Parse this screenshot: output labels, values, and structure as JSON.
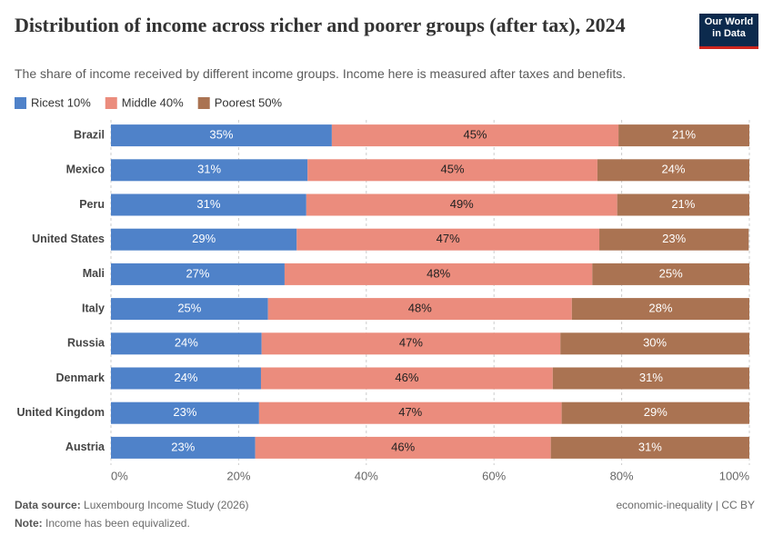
{
  "chart_data": {
    "type": "bar",
    "orientation": "horizontal",
    "stacked": true,
    "title": "Distribution of income across richer and poorer groups (after tax), 2024",
    "subtitle": "The share of income received by different income groups. Income here is measured after taxes and benefits.",
    "logo": [
      "Our World",
      "in Data"
    ],
    "categories": [
      "Brazil",
      "Mexico",
      "Peru",
      "United States",
      "Mali",
      "Italy",
      "Russia",
      "Denmark",
      "United Kingdom",
      "Austria"
    ],
    "series": [
      {
        "name": "Ricest 10%",
        "color": "#4f82c9",
        "values": [
          34.6,
          30.8,
          30.6,
          29.1,
          27.2,
          24.6,
          23.6,
          23.5,
          23.2,
          22.6
        ],
        "value_labels": [
          "35%",
          "31%",
          "31%",
          "29%",
          "27%",
          "25%",
          "24%",
          "24%",
          "23%",
          "23%"
        ]
      },
      {
        "name": "Middle 40%",
        "color": "#eb8c7d",
        "values": [
          44.9,
          45.4,
          48.7,
          47.4,
          48.2,
          47.6,
          46.8,
          45.7,
          47.4,
          46.3
        ],
        "value_labels": [
          "45%",
          "45%",
          "49%",
          "47%",
          "48%",
          "48%",
          "47%",
          "46%",
          "47%",
          "46%"
        ]
      },
      {
        "name": "Poorest 50%",
        "color": "#aa7352",
        "values": [
          20.5,
          23.8,
          20.7,
          23.4,
          24.6,
          27.8,
          29.6,
          30.8,
          29.4,
          31.1
        ],
        "value_labels": [
          "21%",
          "24%",
          "21%",
          "23%",
          "25%",
          "28%",
          "30%",
          "31%",
          "29%",
          "31%"
        ]
      }
    ],
    "xlim": [
      0,
      100
    ],
    "xticks": [
      {
        "value": 0,
        "label": "0%"
      },
      {
        "value": 20,
        "label": "20%"
      },
      {
        "value": 40,
        "label": "40%"
      },
      {
        "value": 60,
        "label": "60%"
      },
      {
        "value": 80,
        "label": "80%"
      },
      {
        "value": 100,
        "label": "100%"
      }
    ],
    "grid": true,
    "legend": "top-left",
    "source_label": "Data source:",
    "source": "Luxembourg Income Study (2026)",
    "license": "economic-inequality | CC BY",
    "note_label": "Note:",
    "note": "Income has been equivalized."
  }
}
